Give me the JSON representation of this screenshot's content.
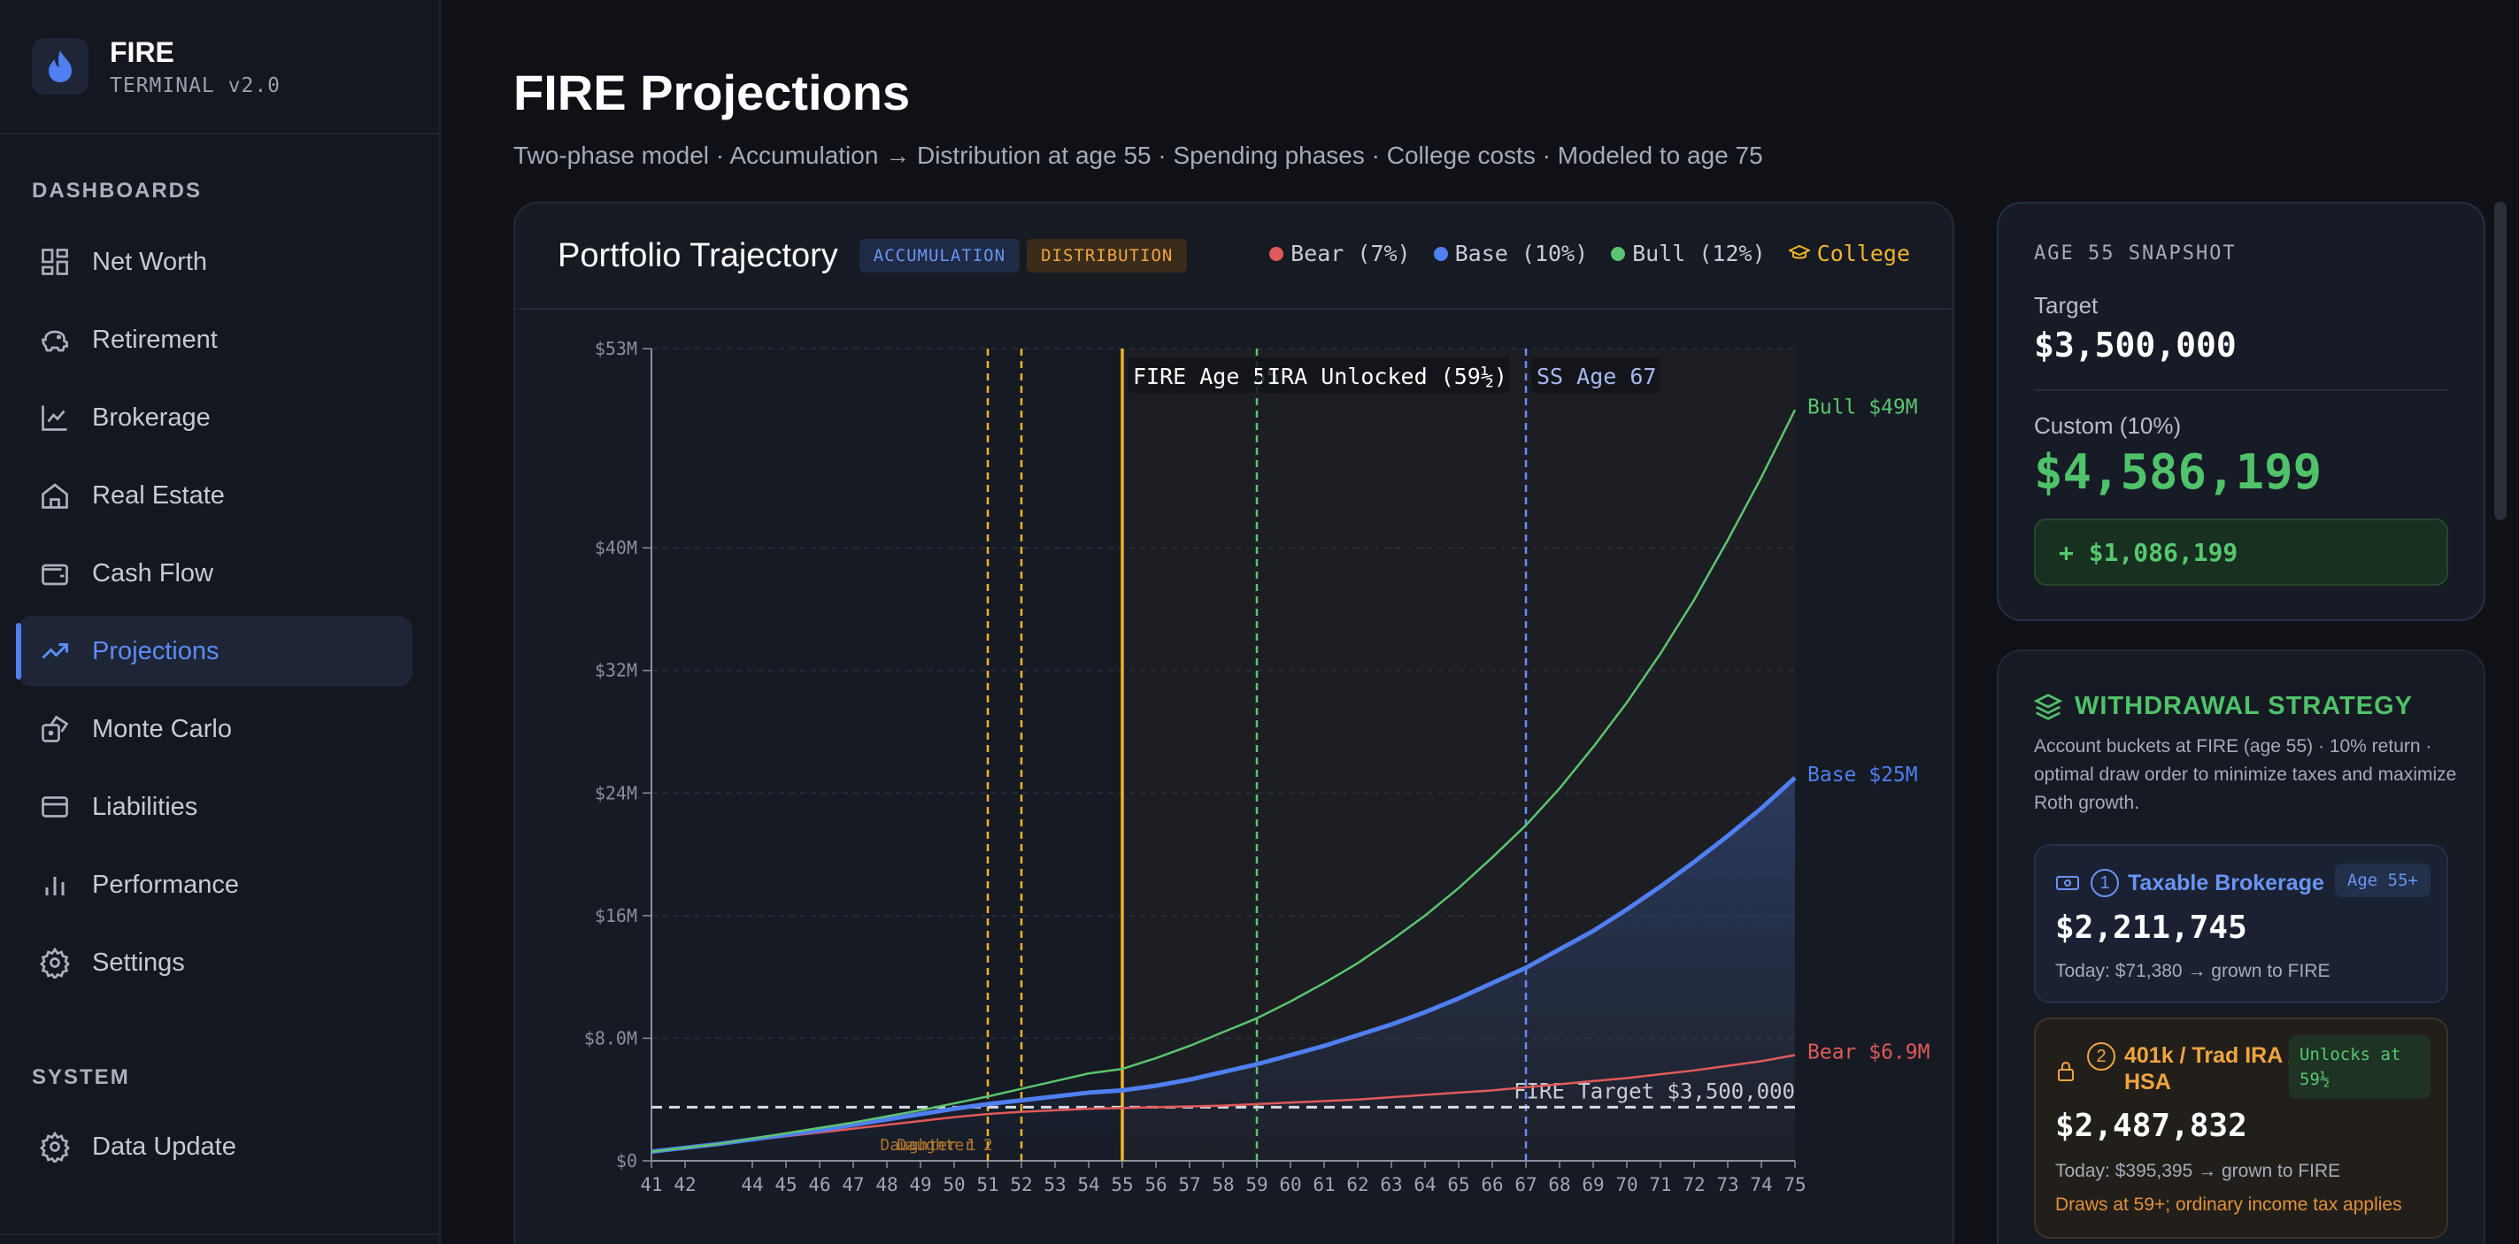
{
  "brand": {
    "title": "FIRE",
    "subtitle": "TERMINAL v2.0"
  },
  "sidebar": {
    "section_dashboards": "DASHBOARDS",
    "section_system": "SYSTEM",
    "items": [
      {
        "label": "Net Worth",
        "icon": "grid-icon"
      },
      {
        "label": "Retirement",
        "icon": "piggy-bank-icon"
      },
      {
        "label": "Brokerage",
        "icon": "line-chart-icon"
      },
      {
        "label": "Real Estate",
        "icon": "home-icon"
      },
      {
        "label": "Cash Flow",
        "icon": "wallet-icon"
      },
      {
        "label": "Projections",
        "icon": "trending-up-icon",
        "active": true
      },
      {
        "label": "Monte Carlo",
        "icon": "dice-icon"
      },
      {
        "label": "Liabilities",
        "icon": "credit-card-icon"
      },
      {
        "label": "Performance",
        "icon": "bar-chart-icon"
      },
      {
        "label": "Settings",
        "icon": "gear-icon"
      }
    ],
    "system_items": [
      {
        "label": "Data Update",
        "icon": "gear-icon"
      }
    ]
  },
  "page": {
    "title": "FIRE Projections",
    "subtitle": "Two-phase model · Accumulation → Distribution at age 55 · Spending phases · College costs · Modeled to age 75"
  },
  "chart_card": {
    "title": "Portfolio Trajectory",
    "pill_accumulation": "ACCUMULATION",
    "pill_distribution": "DISTRIBUTION",
    "legend": [
      {
        "label": "Bear (7%)",
        "color": "#e05a5a"
      },
      {
        "label": "Base (10%)",
        "color": "#4f7ff0"
      },
      {
        "label": "Bull (12%)",
        "color": "#5cc46e"
      },
      {
        "label": "College",
        "color": "#f0b429",
        "icon": "graduation-cap-icon"
      }
    ]
  },
  "chart_data": {
    "type": "line",
    "x": [
      41,
      42,
      43,
      44,
      45,
      46,
      47,
      48,
      49,
      50,
      51,
      52,
      53,
      54,
      55,
      56,
      57,
      58,
      59,
      60,
      61,
      62,
      63,
      64,
      65,
      66,
      67,
      68,
      69,
      70,
      71,
      72,
      73,
      74,
      75
    ],
    "x_tick_labels": [
      "41",
      "42",
      "44",
      "45",
      "46",
      "47",
      "48",
      "49",
      "50",
      "51",
      "52",
      "53",
      "54",
      "55",
      "56",
      "57",
      "58",
      "59",
      "60",
      "61",
      "62",
      "63",
      "64",
      "65",
      "66",
      "67",
      "68",
      "69",
      "70",
      "71",
      "72",
      "73",
      "74",
      "75"
    ],
    "y_tick_labels": [
      "$0",
      "$8.0M",
      "$16M",
      "$24M",
      "$32M",
      "$40M",
      "$53M"
    ],
    "y_ticks": [
      0,
      8,
      16,
      24,
      32,
      40,
      53
    ],
    "ylim": [
      0,
      53
    ],
    "series": [
      {
        "name": "Bear (7%)",
        "color": "#e05a5a",
        "end_label": "Bear $6.9M",
        "values": [
          0.6,
          0.85,
          1.1,
          1.35,
          1.6,
          1.85,
          2.1,
          2.35,
          2.6,
          2.85,
          3.05,
          3.2,
          3.3,
          3.4,
          3.45,
          3.5,
          3.55,
          3.6,
          3.7,
          3.8,
          3.9,
          4.0,
          4.15,
          4.3,
          4.45,
          4.6,
          4.8,
          5.0,
          5.2,
          5.4,
          5.65,
          5.9,
          6.2,
          6.5,
          6.9
        ]
      },
      {
        "name": "Base (10%)",
        "color": "#4f7ff0",
        "end_label": "Base $25M",
        "values": [
          0.6,
          0.85,
          1.1,
          1.4,
          1.7,
          2.0,
          2.35,
          2.7,
          3.05,
          3.4,
          3.7,
          3.95,
          4.2,
          4.45,
          4.6,
          4.9,
          5.3,
          5.8,
          6.3,
          6.9,
          7.5,
          8.2,
          8.9,
          9.7,
          10.6,
          11.6,
          12.6,
          13.8,
          15.0,
          16.4,
          17.9,
          19.5,
          21.2,
          23.0,
          25.0
        ]
      },
      {
        "name": "Bull (12%)",
        "color": "#5cc46e",
        "end_label": "Bull $49M",
        "values": [
          0.6,
          0.85,
          1.1,
          1.45,
          1.8,
          2.15,
          2.5,
          2.9,
          3.3,
          3.75,
          4.2,
          4.7,
          5.2,
          5.7,
          6.0,
          6.7,
          7.5,
          8.4,
          9.3,
          10.4,
          11.6,
          12.9,
          14.4,
          16.0,
          17.8,
          19.8,
          21.9,
          24.3,
          27.0,
          29.9,
          33.1,
          36.6,
          40.5,
          44.6,
          49.0
        ]
      }
    ],
    "fire_target": {
      "value": 3.5,
      "label": "FIRE Target $3,500,000"
    },
    "markers": [
      {
        "age": 51,
        "label": "",
        "color": "#f0b429",
        "style": "dashed"
      },
      {
        "age": 52,
        "label": "",
        "color": "#f0b429",
        "style": "dashed"
      },
      {
        "age": 55,
        "label": "FIRE Age 55",
        "color": "#f0b429",
        "style": "solid"
      },
      {
        "age": 59,
        "label": "IRA Unlocked (59½)",
        "color": "#5cc46e",
        "style": "dashed"
      },
      {
        "age": 67,
        "label": "SS Age 67",
        "color": "#6a8cf5",
        "style": "dashed"
      }
    ],
    "college_labels": [
      "Daughter 1",
      "Daughter 2"
    ]
  },
  "snapshot": {
    "label": "AGE 55 SNAPSHOT",
    "target_label": "Target",
    "target_value": "$3,500,000",
    "custom_label": "Custom (10%)",
    "custom_value": "$4,586,199",
    "delta": "+ $1,086,199"
  },
  "withdrawal": {
    "title": "WITHDRAWAL STRATEGY",
    "description": "Account buckets at FIRE (age 55) · 10% return · optimal draw order to minimize taxes and maximize Roth growth.",
    "buckets": [
      {
        "num": "1",
        "name": "Taxable Brokerage",
        "badge": "Age 55+",
        "value": "$2,211,745",
        "today": "Today: $71,380 → grown to FIRE"
      },
      {
        "num": "2",
        "name": "401k / Trad IRA / HSA",
        "badge": "Unlocks at 59½",
        "value": "$2,487,832",
        "today": "Today: $395,395 → grown to FIRE",
        "note": "Draws at 59+; ordinary income tax applies"
      }
    ]
  }
}
